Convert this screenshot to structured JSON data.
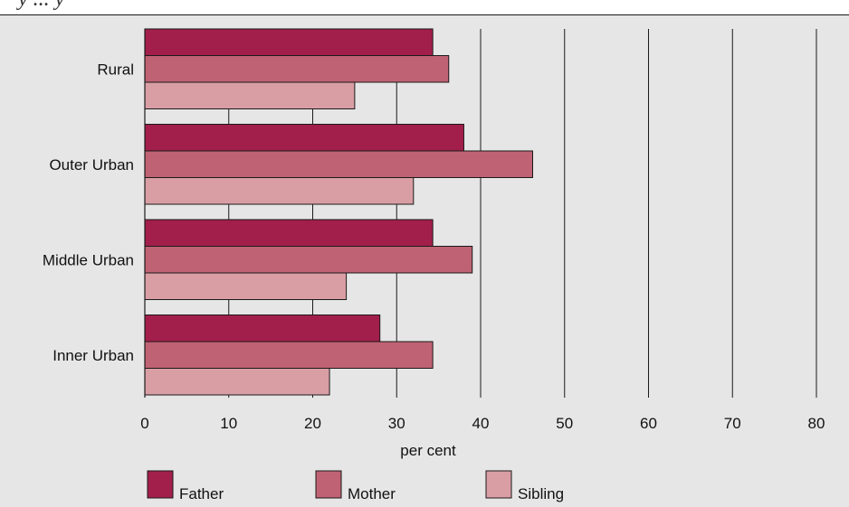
{
  "header": {
    "title_fragment": "y ... y"
  },
  "chart_data": {
    "type": "bar",
    "orientation": "horizontal",
    "categories": [
      "Rural",
      "Outer Urban",
      "Middle Urban",
      "Inner Urban"
    ],
    "series": [
      {
        "name": "Father",
        "color": "#a31f4b",
        "values": [
          34.3,
          38.0,
          34.3,
          28.0
        ]
      },
      {
        "name": "Mother",
        "color": "#bf6273",
        "values": [
          36.2,
          46.2,
          39.0,
          34.3
        ]
      },
      {
        "name": "Sibling",
        "color": "#d99ea4",
        "values": [
          25.0,
          32.0,
          24.0,
          22.0
        ]
      }
    ],
    "xlim": [
      0,
      80
    ],
    "xticks": [
      "0",
      "10",
      "20",
      "30",
      "40",
      "50",
      "60",
      "70",
      "80"
    ],
    "xlabel": "per cent",
    "ylabel": "",
    "grid": "vertical",
    "legend_position": "bottom"
  }
}
